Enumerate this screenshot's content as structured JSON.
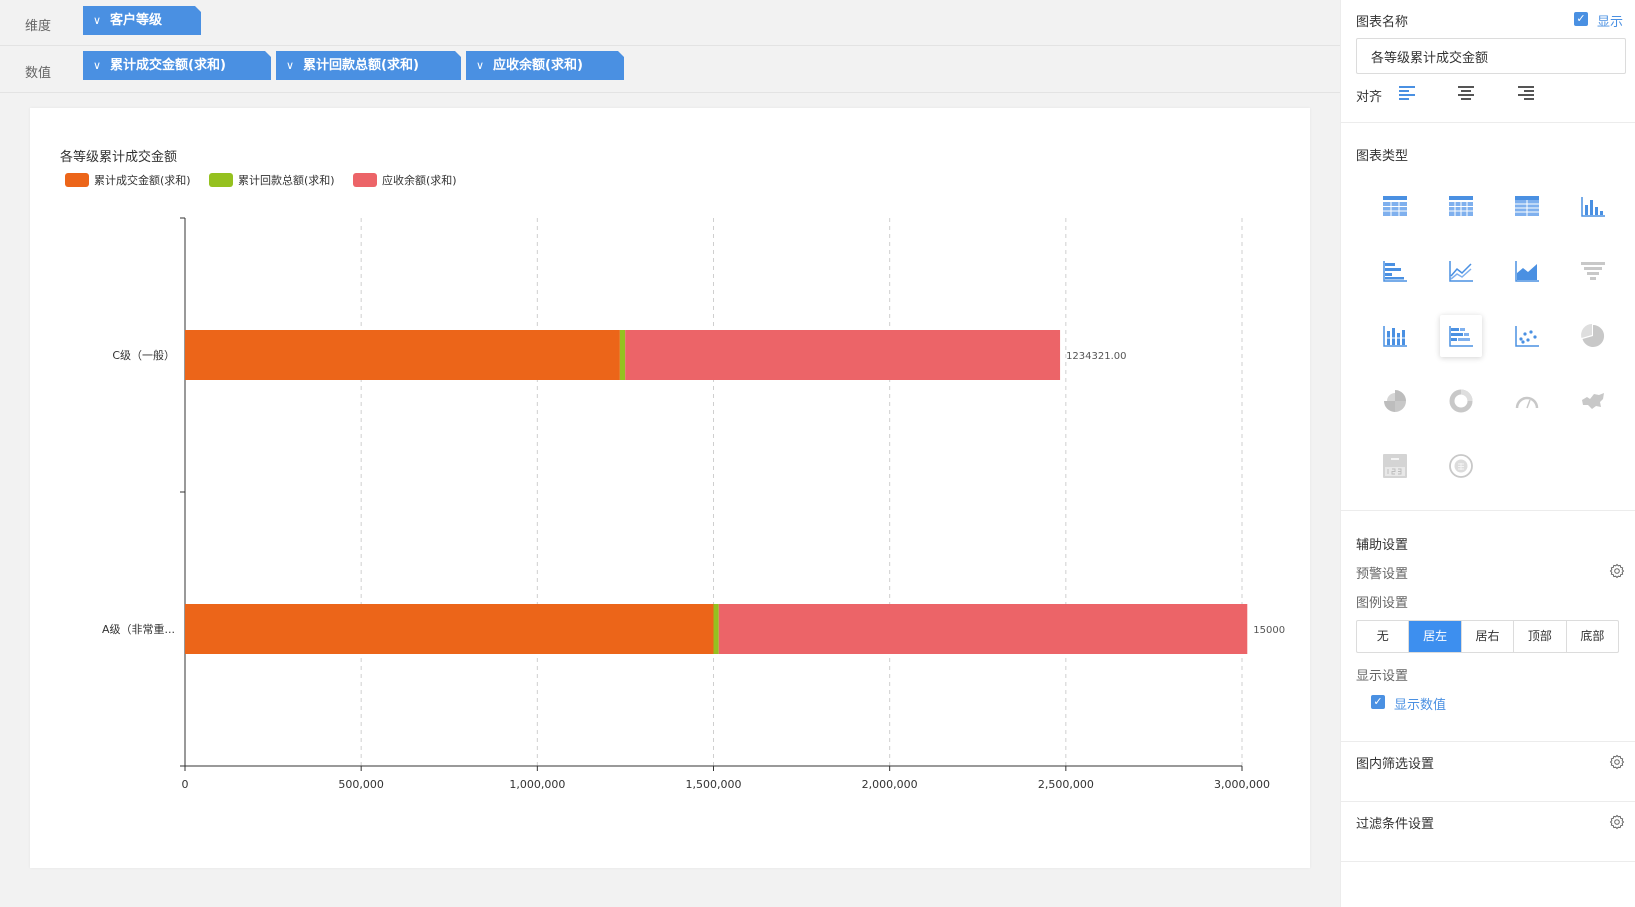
{
  "fields": {
    "dimension_label": "维度",
    "value_label": "数值",
    "dimension_pills": [
      "客户等级"
    ],
    "value_pills": [
      "累计成交金额(求和)",
      "累计回款总额(求和)",
      "应收余额(求和)"
    ],
    "chevron": "∨"
  },
  "chart_data": {
    "type": "bar",
    "orientation": "horizontal",
    "stacked": true,
    "title": "各等级累计成交金额",
    "categories": [
      "C级（一般）",
      "A级（非常重..."
    ],
    "series": [
      {
        "name": "累计成交金额(求和)",
        "color": "#ec6519",
        "values": [
          1234321,
          1500000
        ]
      },
      {
        "name": "累计回款总额(求和)",
        "color": "#95c11f",
        "values": [
          15000,
          15000
        ]
      },
      {
        "name": "应收余额(求和)",
        "color": "#ec6468",
        "values": [
          1234321,
          1500000
        ]
      }
    ],
    "data_labels": [
      "1234321.00",
      "15000"
    ],
    "xlim": [
      0,
      3000000
    ],
    "xticks": [
      "0",
      "500,000",
      "1,000,000",
      "1,500,000",
      "2,000,000",
      "2,500,000",
      "3,000,000"
    ],
    "grid": true,
    "legend_position": "top-left"
  },
  "panel": {
    "chart_name_label": "图表名称",
    "show_label": "显示",
    "title_value": "各等级累计成交金额",
    "align_label": "对齐",
    "chart_type_label": "图表类型",
    "chart_type_icons": [
      "table-icon",
      "cross-table-icon",
      "detail-table-icon",
      "column-chart-icon",
      "bar-chart-icon",
      "line-chart-icon",
      "area-chart-icon",
      "funnel-chart-icon",
      "stacked-column-icon",
      "stacked-bar-icon",
      "scatter-chart-icon",
      "pie-chart-icon",
      "rose-pie-icon",
      "donut-chart-icon",
      "gauge-chart-icon",
      "map-icon",
      "kpi-card-icon",
      "wordcloud-icon"
    ],
    "selected_type": "stacked-bar-icon",
    "aux_label": "辅助设置",
    "warning_label": "预警设置",
    "legend_label": "图例设置",
    "legend_options": [
      "无",
      "居左",
      "居右",
      "顶部",
      "底部"
    ],
    "legend_selected": "居左",
    "display_label": "显示设置",
    "show_values_label": "显示数值",
    "inner_filter_label": "图内筛选设置",
    "filter_label": "过滤条件设置",
    "checkmark": "✓",
    "accent": "#4a90e2"
  }
}
